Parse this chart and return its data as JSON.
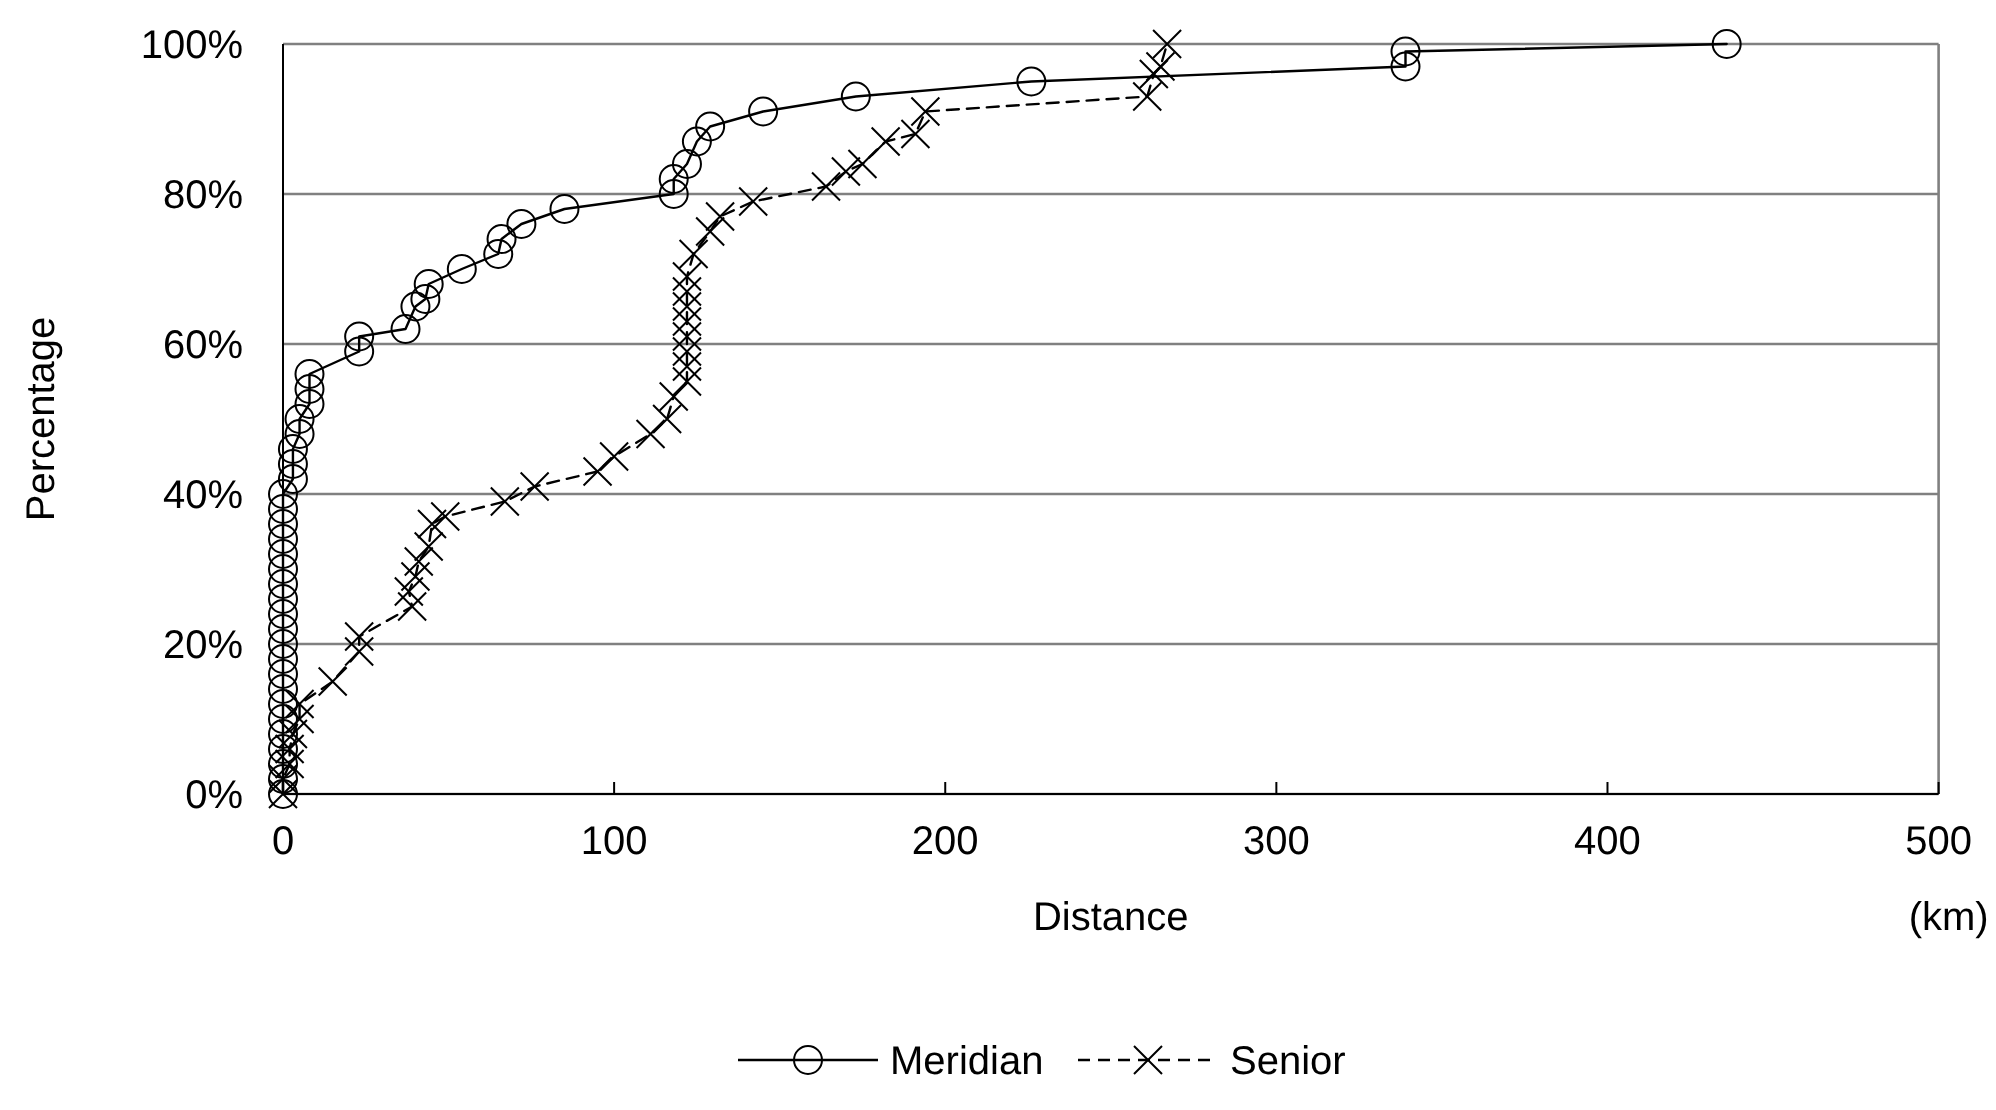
{
  "chart_data": {
    "type": "line",
    "xlabel": "Distance",
    "ylabel": "Percentage",
    "annotations": [
      "(km)"
    ],
    "xlim": [
      0,
      500
    ],
    "xticks": [
      0,
      100,
      200,
      300,
      400,
      500
    ],
    "ylim": [
      0,
      100
    ],
    "yticks": [
      {
        "value": 0,
        "label": "0%"
      },
      {
        "value": 20,
        "label": "20%"
      },
      {
        "value": 40,
        "label": "40%"
      },
      {
        "value": 60,
        "label": "60%"
      },
      {
        "value": 80,
        "label": "80%"
      },
      {
        "value": 100,
        "label": "100%"
      }
    ],
    "grid": "y",
    "legend": "bottom",
    "series": [
      {
        "name": "Meridian",
        "color": "#000000",
        "marker": "circle",
        "line_style": "solid",
        "x": [
          0,
          0,
          0,
          0,
          0,
          0,
          0,
          0,
          0,
          0,
          0,
          0,
          0,
          0,
          0,
          0,
          0,
          0,
          0,
          0,
          0,
          3,
          3,
          3,
          5,
          5,
          8,
          8,
          8,
          23,
          23,
          37,
          40,
          43,
          44,
          54,
          65,
          66,
          72,
          85,
          118,
          118,
          122,
          125,
          129,
          145,
          173,
          226,
          339,
          339,
          436
        ],
        "values": [
          0,
          2,
          4,
          6,
          8,
          10,
          12,
          14,
          16,
          18,
          20,
          22,
          24,
          26,
          28,
          30,
          32,
          34,
          36,
          38,
          40,
          42,
          44,
          46,
          48,
          50,
          52,
          54,
          56,
          59,
          61,
          62,
          65,
          66,
          68,
          70,
          72,
          74,
          76,
          78,
          80,
          82,
          84,
          87,
          89,
          91,
          93,
          95,
          97,
          99,
          100
        ]
      },
      {
        "name": "Senior",
        "color": "#000000",
        "marker": "cross",
        "line_style": "dashed",
        "x": [
          0,
          0,
          2,
          2,
          3,
          5,
          5,
          15,
          23,
          23,
          39,
          38,
          40,
          41,
          44,
          45,
          49,
          67,
          76,
          95,
          100,
          111,
          116,
          118,
          122,
          122,
          122,
          122,
          122,
          122,
          122,
          122,
          124,
          129,
          132,
          142,
          164,
          170,
          175,
          182,
          191,
          194,
          261,
          263,
          265,
          267
        ],
        "values": [
          0,
          2,
          4,
          6,
          8,
          10,
          12,
          15,
          19,
          21,
          25,
          27,
          29,
          31,
          33,
          36,
          37,
          39,
          41,
          43,
          45,
          48,
          50,
          53,
          55,
          57,
          59,
          61,
          63,
          65,
          67,
          69,
          72,
          75,
          77,
          79,
          81,
          83,
          84,
          87,
          88,
          91,
          93,
          96,
          97,
          100
        ]
      }
    ]
  }
}
